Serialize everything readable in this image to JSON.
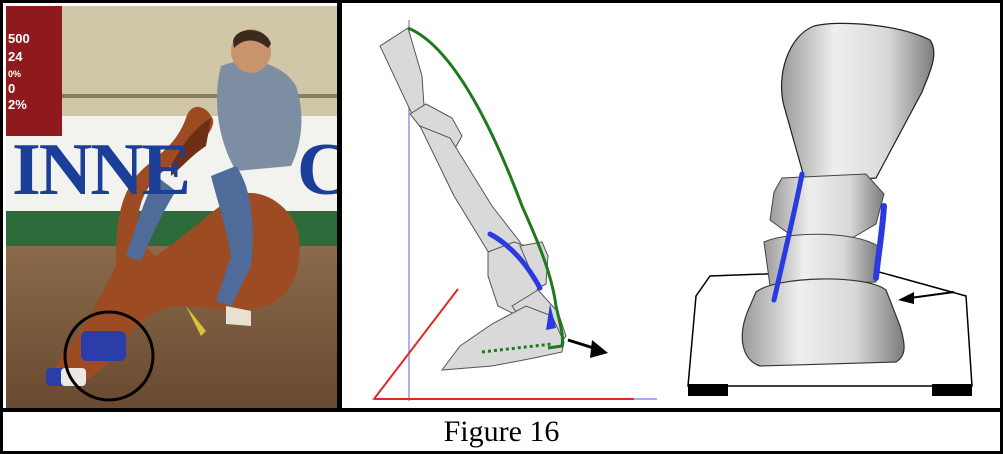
{
  "figure": {
    "caption": "Figure 16"
  },
  "photo": {
    "scoreboard_lines": [
      "500",
      "24",
      "0%",
      "0",
      "2%"
    ],
    "banner_text": "INNE",
    "banner_text_right": "C"
  },
  "colors": {
    "frame": "#000000",
    "bone_fill": "#d9d9d9",
    "ligament": "#2a39e0",
    "outline_green": "#1f7a1f",
    "angle_red": "#e02828",
    "axis_blue": "#7a7ae6",
    "banner_blue": "#1b3e98",
    "scoreboard": "#8e1a1e"
  },
  "icons": {
    "diagram_arrow": "arrow-right-down-icon",
    "bone_arrow": "arrow-left-icon"
  }
}
